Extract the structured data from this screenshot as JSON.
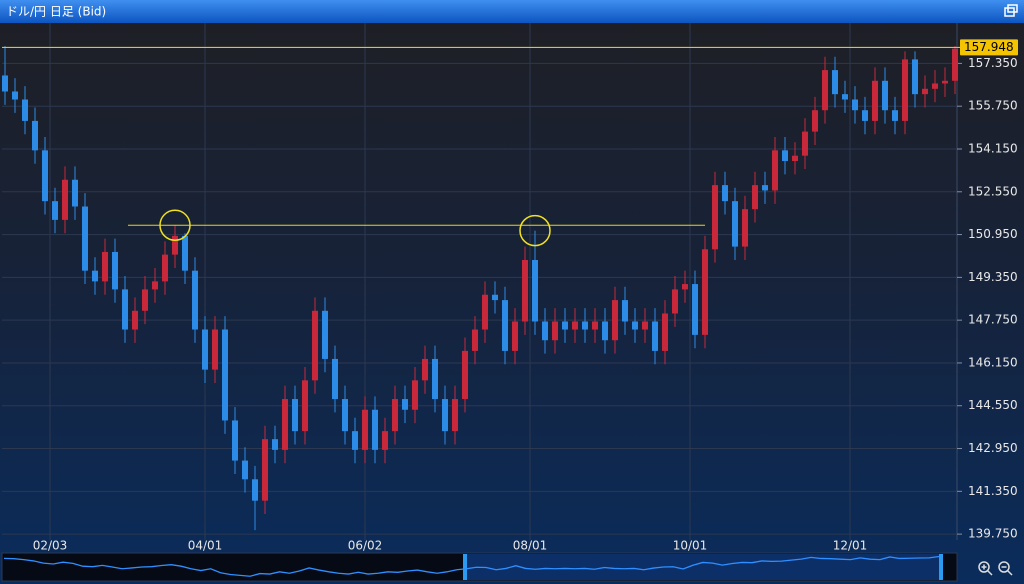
{
  "chart_data": {
    "type": "candlestick",
    "title": "ドル/円 日足 (Bid)",
    "up_color": "#c8283a",
    "down_color": "#2b8be6",
    "open": [
      156.9,
      156.3,
      156.0,
      155.2,
      154.1,
      152.2,
      151.5,
      153.0,
      152.0,
      149.6,
      149.2,
      150.3,
      148.9,
      147.4,
      148.1,
      148.9,
      149.2,
      150.2,
      150.9,
      149.6,
      147.4,
      145.9,
      147.4,
      144.0,
      142.5,
      141.8,
      141.0,
      143.3,
      142.9,
      144.8,
      143.6,
      145.5,
      148.1,
      146.3,
      144.8,
      143.6,
      142.9,
      144.4,
      142.9,
      143.6,
      144.8,
      144.4,
      145.5,
      146.3,
      144.8,
      143.6,
      144.8,
      146.6,
      147.4,
      148.7,
      148.5,
      146.6,
      147.7,
      150.0,
      147.7,
      147.0,
      147.7,
      147.4,
      147.7,
      147.4,
      147.7,
      147.0,
      148.5,
      147.7,
      147.4,
      147.7,
      146.6,
      148.0,
      148.9,
      149.1,
      147.2,
      150.4,
      152.8,
      152.2,
      150.5,
      151.9,
      152.8,
      152.6,
      154.1,
      153.7,
      153.9,
      154.8,
      155.6,
      157.1,
      156.2,
      156.0,
      155.6,
      155.2,
      156.7,
      155.6,
      155.2,
      157.5,
      156.2,
      156.4,
      156.6,
      156.7
    ],
    "high": [
      158.0,
      156.8,
      156.5,
      155.7,
      154.6,
      152.7,
      153.5,
      153.5,
      152.5,
      150.1,
      150.8,
      150.8,
      149.4,
      148.6,
      149.4,
      149.7,
      150.7,
      151.3,
      151.0,
      150.1,
      147.9,
      147.9,
      147.9,
      144.5,
      143.0,
      142.3,
      143.8,
      143.8,
      145.3,
      145.3,
      146.0,
      148.6,
      148.6,
      146.8,
      145.3,
      144.1,
      144.9,
      144.9,
      144.1,
      145.3,
      145.3,
      146.0,
      146.8,
      146.8,
      145.3,
      145.3,
      147.1,
      147.9,
      149.2,
      149.2,
      149.0,
      148.2,
      150.5,
      151.1,
      148.2,
      148.2,
      148.2,
      148.2,
      148.2,
      148.2,
      148.2,
      149.0,
      149.0,
      148.2,
      148.2,
      148.2,
      148.5,
      149.4,
      149.6,
      149.6,
      150.9,
      153.3,
      153.3,
      152.7,
      152.4,
      153.3,
      153.3,
      154.6,
      154.6,
      154.4,
      155.3,
      156.1,
      157.6,
      157.6,
      156.7,
      156.5,
      156.1,
      157.2,
      157.2,
      156.1,
      157.8,
      157.8,
      156.9,
      157.1,
      157.2,
      158.0
    ],
    "low": [
      155.8,
      155.5,
      154.7,
      153.6,
      151.7,
      151.0,
      151.0,
      151.5,
      149.1,
      148.7,
      148.7,
      148.4,
      146.9,
      146.9,
      147.6,
      148.4,
      148.7,
      149.7,
      149.1,
      146.9,
      145.4,
      145.4,
      143.5,
      142.0,
      141.3,
      139.9,
      140.5,
      142.4,
      142.4,
      143.1,
      143.1,
      145.0,
      145.8,
      144.3,
      143.1,
      142.4,
      142.4,
      142.4,
      142.4,
      143.1,
      143.9,
      143.9,
      145.0,
      144.3,
      143.1,
      143.1,
      144.3,
      146.1,
      146.9,
      148.0,
      146.1,
      146.1,
      147.2,
      147.2,
      146.5,
      146.5,
      146.9,
      146.9,
      146.9,
      146.9,
      146.5,
      146.5,
      147.2,
      146.9,
      146.9,
      146.1,
      146.1,
      147.5,
      148.4,
      146.7,
      146.7,
      149.9,
      151.7,
      150.0,
      150.0,
      151.4,
      152.1,
      152.1,
      153.2,
      153.2,
      153.4,
      154.3,
      155.1,
      155.7,
      155.5,
      155.1,
      154.7,
      154.7,
      155.1,
      154.7,
      154.7,
      155.7,
      155.7,
      155.9,
      156.1,
      156.2
    ],
    "close": [
      156.3,
      156.0,
      155.2,
      154.1,
      152.2,
      151.5,
      153.0,
      152.0,
      149.6,
      149.2,
      150.3,
      148.9,
      147.4,
      148.1,
      148.9,
      149.2,
      150.2,
      150.9,
      149.6,
      147.4,
      145.9,
      147.4,
      144.0,
      142.5,
      141.8,
      141.0,
      143.3,
      142.9,
      144.8,
      143.6,
      145.5,
      148.1,
      146.3,
      144.8,
      143.6,
      142.9,
      144.4,
      142.9,
      143.6,
      144.8,
      144.4,
      145.5,
      146.3,
      144.8,
      143.6,
      144.8,
      146.6,
      147.4,
      148.7,
      148.5,
      146.6,
      147.7,
      150.0,
      147.7,
      147.0,
      147.7,
      147.4,
      147.7,
      147.4,
      147.7,
      147.0,
      148.5,
      147.7,
      147.4,
      147.7,
      146.6,
      148.0,
      148.9,
      149.1,
      147.2,
      150.4,
      152.8,
      152.2,
      150.5,
      151.9,
      152.8,
      152.6,
      154.1,
      153.7,
      153.9,
      154.8,
      155.6,
      157.1,
      156.2,
      156.0,
      155.6,
      155.2,
      156.7,
      155.6,
      155.2,
      157.5,
      156.2,
      156.4,
      156.6,
      156.7,
      157.9
    ],
    "xlim": [
      -0.5,
      95.5
    ],
    "xticks": [
      {
        "value": 4.5,
        "label": "02/03"
      },
      {
        "value": 20,
        "label": "04/01"
      },
      {
        "value": 36,
        "label": "06/02"
      },
      {
        "value": 52.5,
        "label": "08/01"
      },
      {
        "value": 68.5,
        "label": "10/01"
      },
      {
        "value": 84.5,
        "label": "12/01"
      }
    ],
    "ylim": [
      139.53,
      158.3
    ],
    "yticks": [
      {
        "value": 139.75,
        "label": "139.750"
      },
      {
        "value": 141.35,
        "label": "141.350"
      },
      {
        "value": 142.95,
        "label": "142.950"
      },
      {
        "value": 144.55,
        "label": "144.550"
      },
      {
        "value": 146.15,
        "label": "146.150"
      },
      {
        "value": 147.75,
        "label": "147.750"
      },
      {
        "value": 149.35,
        "label": "149.350"
      },
      {
        "value": 150.95,
        "label": "150.950"
      },
      {
        "value": 152.55,
        "label": "152.550"
      },
      {
        "value": 154.15,
        "label": "154.150"
      },
      {
        "value": 155.75,
        "label": "155.750"
      },
      {
        "value": 157.35,
        "label": "157.350"
      }
    ],
    "grid": true,
    "last_price": 157.948,
    "resistance": 151.3,
    "highlights": [
      17,
      53
    ]
  }
}
